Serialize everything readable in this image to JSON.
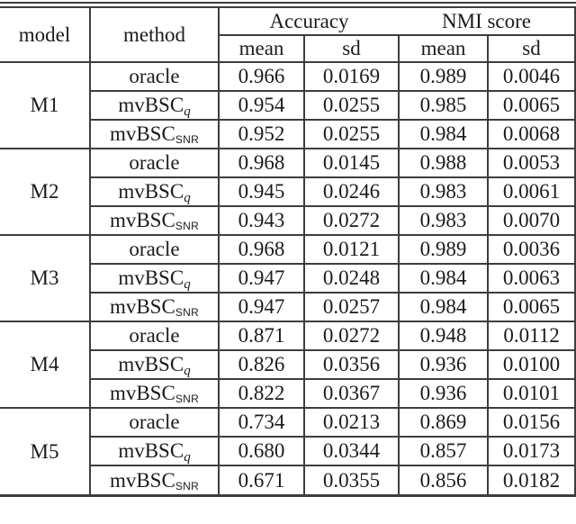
{
  "page": {
    "background": "#ffffff",
    "rule_color": "#3d3d3d",
    "text_color": "#1b1b1b"
  },
  "table": {
    "header": {
      "model_label": "model",
      "method_label": "method",
      "accuracy_group_label": "Accuracy",
      "nmi_group_label": "NMI score",
      "acc_mean_label": "mean",
      "acc_sd_label": "sd",
      "nmi_mean_label": "mean",
      "nmi_sd_label": "sd"
    },
    "blocks": [
      {
        "model": "M1",
        "rows": [
          {
            "method": {
              "base": "oracle",
              "sub": ""
            },
            "acc_mean": "0.966",
            "acc_sd": "0.0169",
            "nmi_mean": "0.989",
            "nmi_sd": "0.0046"
          },
          {
            "method": {
              "base": "mvBSC",
              "sub": "q"
            },
            "acc_mean": "0.954",
            "acc_sd": "0.0255",
            "nmi_mean": "0.985",
            "nmi_sd": "0.0065"
          },
          {
            "method": {
              "base": "mvBSC",
              "sub": "SNR"
            },
            "acc_mean": "0.952",
            "acc_sd": "0.0255",
            "nmi_mean": "0.984",
            "nmi_sd": "0.0068"
          }
        ]
      },
      {
        "model": "M2",
        "rows": [
          {
            "method": {
              "base": "oracle",
              "sub": ""
            },
            "acc_mean": "0.968",
            "acc_sd": "0.0145",
            "nmi_mean": "0.988",
            "nmi_sd": "0.0053"
          },
          {
            "method": {
              "base": "mvBSC",
              "sub": "q"
            },
            "acc_mean": "0.945",
            "acc_sd": "0.0246",
            "nmi_mean": "0.983",
            "nmi_sd": "0.0061"
          },
          {
            "method": {
              "base": "mvBSC",
              "sub": "SNR"
            },
            "acc_mean": "0.943",
            "acc_sd": "0.0272",
            "nmi_mean": "0.983",
            "nmi_sd": "0.0070"
          }
        ]
      },
      {
        "model": "M3",
        "rows": [
          {
            "method": {
              "base": "oracle",
              "sub": ""
            },
            "acc_mean": "0.968",
            "acc_sd": "0.0121",
            "nmi_mean": "0.989",
            "nmi_sd": "0.0036"
          },
          {
            "method": {
              "base": "mvBSC",
              "sub": "q"
            },
            "acc_mean": "0.947",
            "acc_sd": "0.0248",
            "nmi_mean": "0.984",
            "nmi_sd": "0.0063"
          },
          {
            "method": {
              "base": "mvBSC",
              "sub": "SNR"
            },
            "acc_mean": "0.947",
            "acc_sd": "0.0257",
            "nmi_mean": "0.984",
            "nmi_sd": "0.0065"
          }
        ]
      },
      {
        "model": "M4",
        "rows": [
          {
            "method": {
              "base": "oracle",
              "sub": ""
            },
            "acc_mean": "0.871",
            "acc_sd": "0.0272",
            "nmi_mean": "0.948",
            "nmi_sd": "0.0112"
          },
          {
            "method": {
              "base": "mvBSC",
              "sub": "q"
            },
            "acc_mean": "0.826",
            "acc_sd": "0.0356",
            "nmi_mean": "0.936",
            "nmi_sd": "0.0100"
          },
          {
            "method": {
              "base": "mvBSC",
              "sub": "SNR"
            },
            "acc_mean": "0.822",
            "acc_sd": "0.0367",
            "nmi_mean": "0.936",
            "nmi_sd": "0.0101"
          }
        ]
      },
      {
        "model": "M5",
        "rows": [
          {
            "method": {
              "base": "oracle",
              "sub": ""
            },
            "acc_mean": "0.734",
            "acc_sd": "0.0213",
            "nmi_mean": "0.869",
            "nmi_sd": "0.0156"
          },
          {
            "method": {
              "base": "mvBSC",
              "sub": "q"
            },
            "acc_mean": "0.680",
            "acc_sd": "0.0344",
            "nmi_mean": "0.857",
            "nmi_sd": "0.0173"
          },
          {
            "method": {
              "base": "mvBSC",
              "sub": "SNR"
            },
            "acc_mean": "0.671",
            "acc_sd": "0.0355",
            "nmi_mean": "0.856",
            "nmi_sd": "0.0182"
          }
        ]
      }
    ]
  }
}
